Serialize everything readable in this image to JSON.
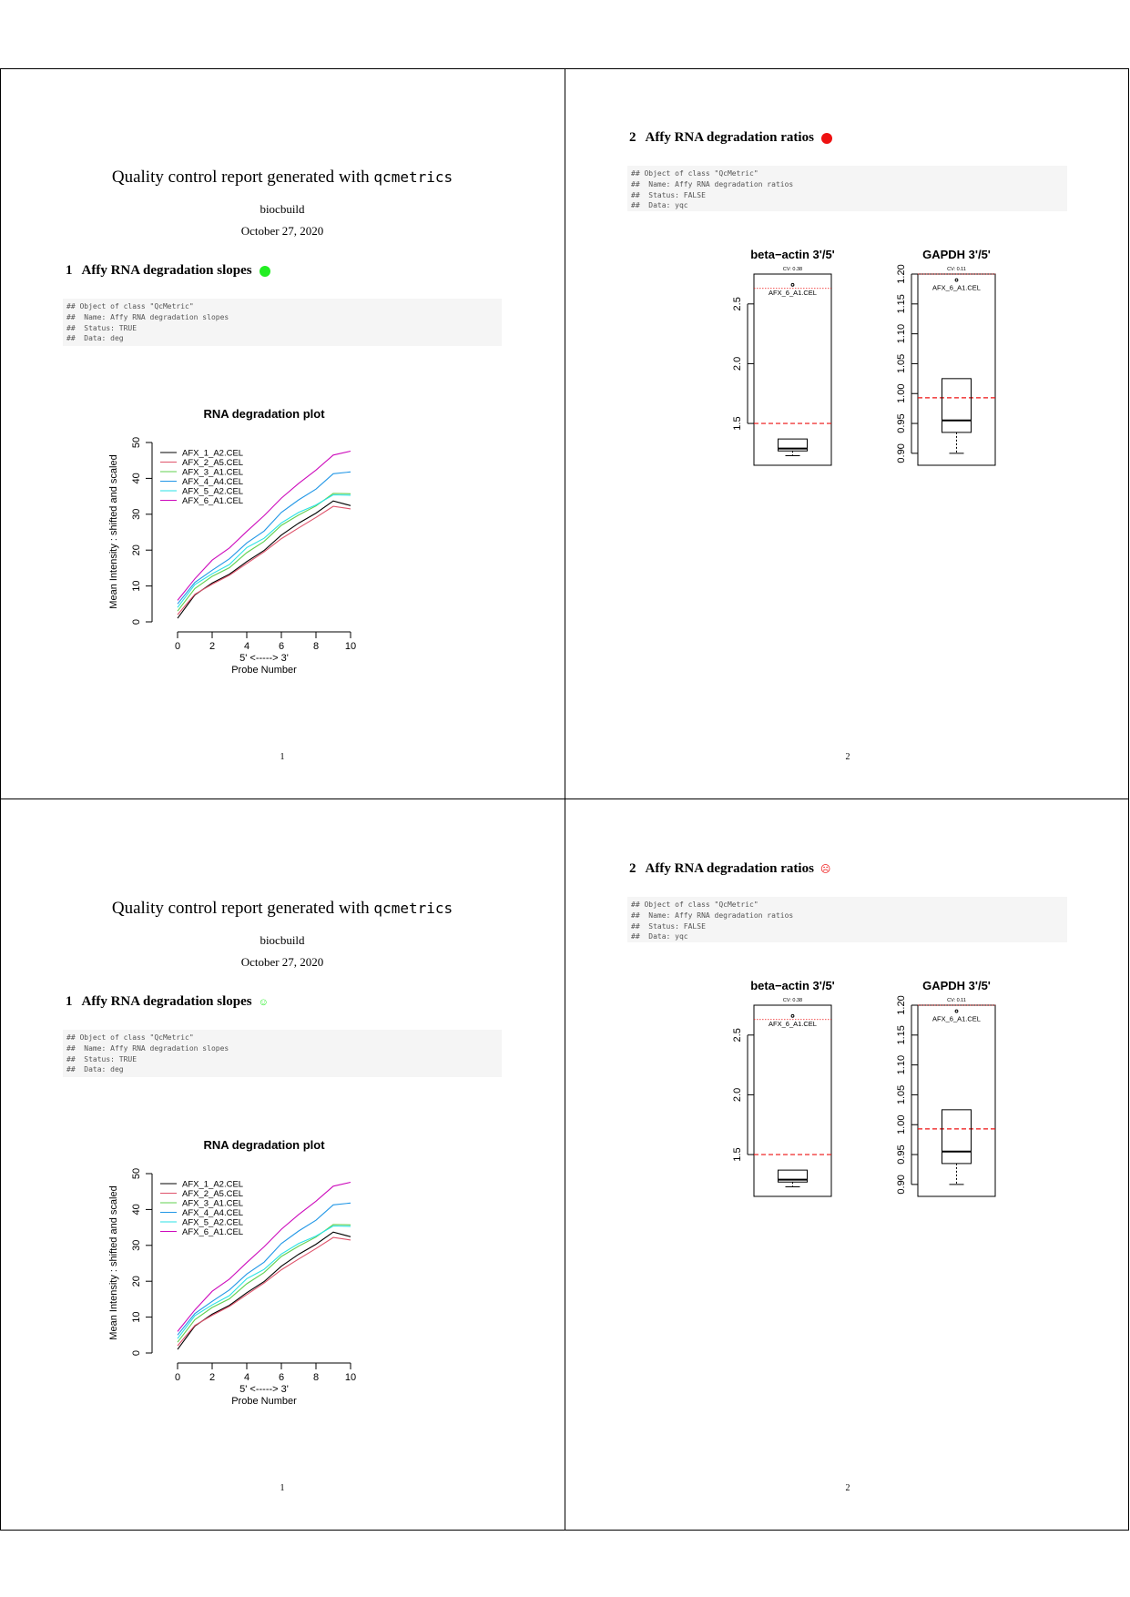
{
  "report": {
    "title_prefix": "Quality control report generated with ",
    "title_code": "qcmetrics",
    "author": "biocbuild",
    "date": "October 27, 2020"
  },
  "section1": {
    "number": "1",
    "title": "Affy RNA degradation slopes",
    "status_color": "#22ee22",
    "code_lines": [
      "## Object of class \"QcMetric\"",
      "##  Name: Affy RNA degradation slopes",
      "##  Status: TRUE",
      "##  Data: deg"
    ],
    "page_number": "1"
  },
  "section2": {
    "number": "2",
    "title": "Affy RNA degradation ratios",
    "status_color": "#ee1111",
    "code_lines": [
      "## Object of class \"QcMetric\"",
      "##  Name: Affy RNA degradation ratios",
      "##  Status: FALSE",
      "##  Data: yqc"
    ],
    "page_number": "2"
  },
  "chart_data": [
    {
      "type": "line",
      "title": "RNA degradation plot",
      "xlabel_line1": "5' <-----> 3'",
      "xlabel_line2": "Probe Number",
      "ylabel": "Mean Intensity : shifted and scaled",
      "xlim": [
        0,
        10
      ],
      "ylim": [
        0,
        50
      ],
      "xticks": [
        "0",
        "2",
        "4",
        "6",
        "8",
        "10"
      ],
      "yticks": [
        "0",
        "10",
        "20",
        "30",
        "40",
        "50"
      ],
      "legend_position": "top-left",
      "x": [
        0,
        1,
        2,
        3,
        4,
        5,
        6,
        7,
        8,
        9,
        10
      ],
      "series": [
        {
          "name": "AFX_1_A2.CEL",
          "color": "#000000",
          "values": [
            1,
            7.5,
            10.8,
            13.3,
            16.8,
            19.9,
            24.2,
            27.5,
            30.3,
            33.7,
            32.4
          ]
        },
        {
          "name": "AFX_2_A5.CEL",
          "color": "#df536b",
          "values": [
            2,
            7.7,
            10.5,
            13.0,
            16.3,
            19.5,
            23.2,
            26.2,
            29.1,
            32.2,
            31.5
          ]
        },
        {
          "name": "AFX_3_A1.CEL",
          "color": "#61d04f",
          "values": [
            3,
            9.3,
            12.7,
            15.1,
            19.3,
            22.4,
            26.9,
            29.8,
            32.3,
            35.8,
            35.7
          ]
        },
        {
          "name": "AFX_4_A4.CEL",
          "color": "#2297e6",
          "values": [
            5,
            11.0,
            14.4,
            17.6,
            22.0,
            25.3,
            30.5,
            34.0,
            37.0,
            41.3,
            41.8
          ]
        },
        {
          "name": "AFX_5_A2.CEL",
          "color": "#28e2e5",
          "values": [
            4,
            10.4,
            13.4,
            16.0,
            20.7,
            23.3,
            27.6,
            30.5,
            32.6,
            35.4,
            35.3
          ]
        },
        {
          "name": "AFX_6_A1.CEL",
          "color": "#cd0bbc",
          "values": [
            6,
            12.0,
            17.2,
            20.6,
            25.2,
            29.6,
            34.5,
            38.6,
            42.3,
            46.5,
            47.6
          ]
        }
      ]
    },
    {
      "type": "box",
      "title": "beta−actin 3'/5'",
      "cv_label": "CV: 0.38",
      "outlier_label": "AFX_6_A1.CEL",
      "ylim": [
        1.15,
        2.75
      ],
      "yticks": [
        "1.5",
        "2.0",
        "2.5"
      ],
      "box": {
        "min": 1.23,
        "q1": 1.27,
        "median": 1.29,
        "q3": 1.37,
        "max": 1.37,
        "outlier": 2.66
      },
      "reference_lines": [
        {
          "value": 1.5,
          "color": "#ee1111",
          "style": "dashed"
        },
        {
          "value": 2.63,
          "color": "#ee1111",
          "style": "dotted"
        }
      ]
    },
    {
      "type": "box",
      "title": "GAPDH 3'/5'",
      "cv_label": "CV: 0.11",
      "outlier_label": "AFX_6_A1.CEL",
      "ylim": [
        0.88,
        1.2
      ],
      "yticks": [
        "0.90",
        "0.95",
        "1.00",
        "1.05",
        "1.10",
        "1.15",
        "1.20"
      ],
      "box": {
        "min": 0.9,
        "q1": 0.935,
        "median": 0.955,
        "q3": 1.025,
        "max": 1.025,
        "outlier": 1.19
      },
      "reference_lines": [
        {
          "value": 0.993,
          "color": "#ee1111",
          "style": "dashed"
        },
        {
          "value": 1.2,
          "color": "#ee1111",
          "style": "dotted"
        }
      ]
    }
  ]
}
